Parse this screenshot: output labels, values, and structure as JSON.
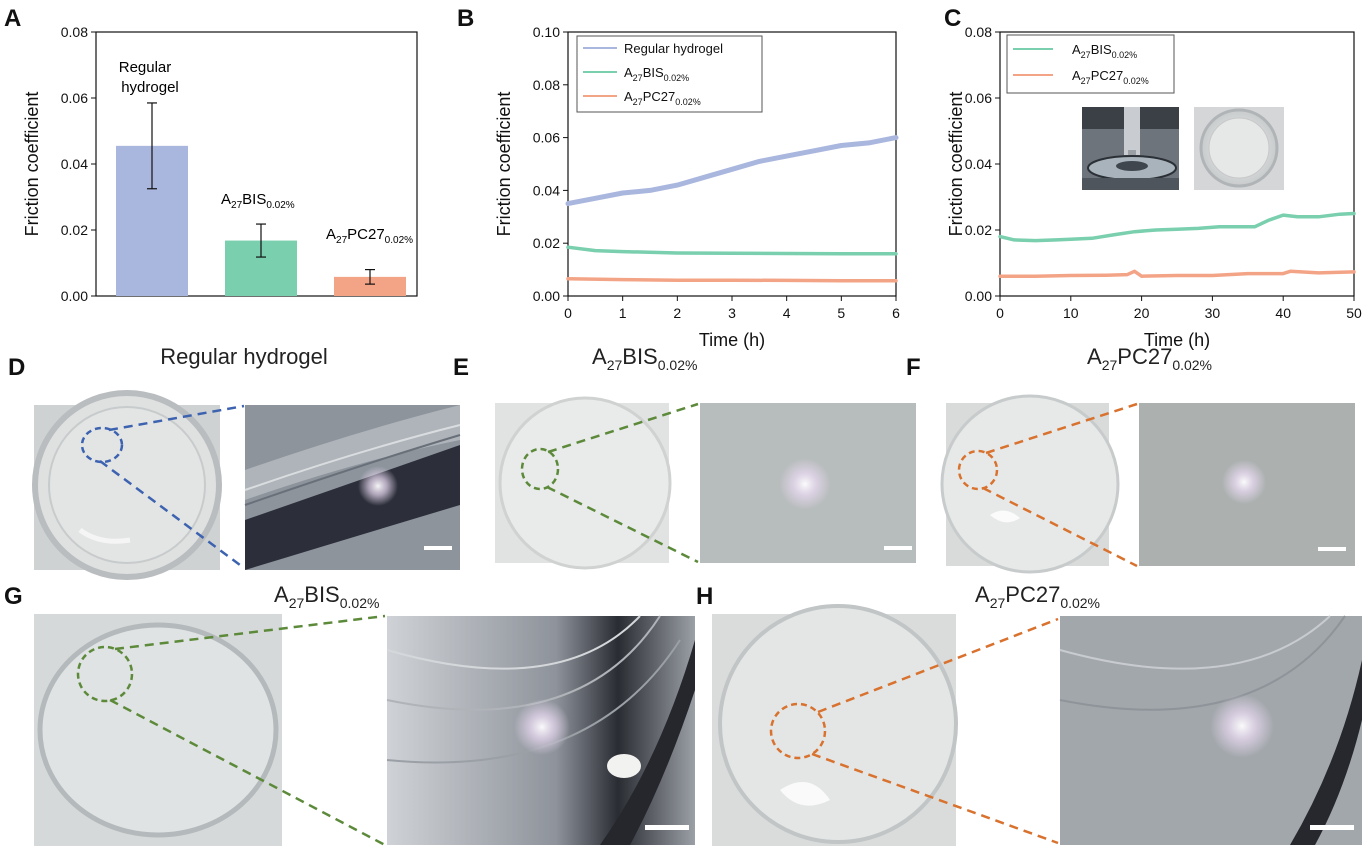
{
  "panels": {
    "A": "A",
    "B": "B",
    "C": "C",
    "D": "D",
    "E": "E",
    "F": "F",
    "G": "G",
    "H": "H"
  },
  "materials": {
    "regular": "Regular hydrogel",
    "bis_base": "A",
    "bis_sub": "27",
    "bis_mid": "BIS",
    "bis_sub2": "0.02%",
    "pc_base": "A",
    "pc_sub": "27",
    "pc_mid": "PC27",
    "pc_sub2": "0.02%"
  },
  "bar_labels": {
    "regular_line1": "Regular",
    "regular_line2": "hydrogel"
  },
  "colors": {
    "regular": "#a9b6de",
    "bis": "#79cfae",
    "pc": "#f4a486",
    "dash_blue": "#3d63b0",
    "dash_green": "#5c8a3a",
    "dash_orange": "#d8722e"
  },
  "chart_data": [
    {
      "type": "bar",
      "panel": "A",
      "categories": [
        "Regular hydrogel",
        "A27BIS0.02%",
        "A27PC270.02%"
      ],
      "values": [
        0.0455,
        0.0168,
        0.0058
      ],
      "errors": [
        0.013,
        0.005,
        0.0022
      ],
      "ylabel": "Friction coefficient",
      "ylim": [
        0,
        0.08
      ],
      "yticks": [
        "0.00",
        "0.02",
        "0.04",
        "0.06",
        "0.08"
      ]
    },
    {
      "type": "line",
      "panel": "B",
      "xlabel": "Time (h)",
      "ylabel": "Friction coefficient",
      "xlim": [
        0,
        6
      ],
      "ylim": [
        0,
        0.1
      ],
      "xticks": [
        "0",
        "1",
        "2",
        "3",
        "4",
        "5",
        "6"
      ],
      "yticks": [
        "0.00",
        "0.02",
        "0.04",
        "0.06",
        "0.08",
        "0.10"
      ],
      "legend": "top-left",
      "series": [
        {
          "name": "Regular hydrogel",
          "x": [
            0,
            0.5,
            1,
            1.5,
            2,
            2.5,
            3,
            3.5,
            4,
            4.5,
            5,
            5.5,
            6
          ],
          "values": [
            0.035,
            0.037,
            0.039,
            0.04,
            0.042,
            0.045,
            0.048,
            0.051,
            0.053,
            0.055,
            0.057,
            0.058,
            0.06
          ]
        },
        {
          "name": "A27BIS0.02%",
          "x": [
            0,
            0.5,
            1,
            2,
            3,
            4,
            5,
            6
          ],
          "values": [
            0.0185,
            0.0172,
            0.0168,
            0.0163,
            0.0162,
            0.0161,
            0.016,
            0.016
          ]
        },
        {
          "name": "A27PC270.02%",
          "x": [
            0,
            1,
            2,
            3,
            4,
            5,
            6
          ],
          "values": [
            0.0065,
            0.0062,
            0.006,
            0.006,
            0.0059,
            0.0058,
            0.0058
          ]
        }
      ]
    },
    {
      "type": "line",
      "panel": "C",
      "xlabel": "Time (h)",
      "ylabel": "Friction coefficient",
      "xlim": [
        0,
        50
      ],
      "ylim": [
        0,
        0.08
      ],
      "xticks": [
        "0",
        "10",
        "20",
        "30",
        "40",
        "50"
      ],
      "yticks": [
        "0.00",
        "0.02",
        "0.04",
        "0.06",
        "0.08"
      ],
      "legend": "top-left",
      "series": [
        {
          "name": "A27BIS0.02%",
          "x": [
            0,
            2,
            5,
            8,
            10,
            13,
            16,
            19,
            22,
            25,
            28,
            31,
            34,
            36,
            38,
            40,
            42,
            45,
            48,
            50
          ],
          "values": [
            0.018,
            0.017,
            0.0168,
            0.017,
            0.0172,
            0.0175,
            0.0185,
            0.0195,
            0.02,
            0.0202,
            0.0205,
            0.021,
            0.021,
            0.021,
            0.023,
            0.0245,
            0.024,
            0.024,
            0.0248,
            0.025
          ]
        },
        {
          "name": "A27PC270.02%",
          "x": [
            0,
            5,
            10,
            15,
            18,
            19,
            20,
            25,
            30,
            35,
            40,
            41,
            45,
            50
          ],
          "values": [
            0.006,
            0.006,
            0.0062,
            0.0063,
            0.0065,
            0.0075,
            0.006,
            0.0062,
            0.0062,
            0.0068,
            0.0068,
            0.0075,
            0.007,
            0.0073
          ]
        }
      ]
    }
  ]
}
